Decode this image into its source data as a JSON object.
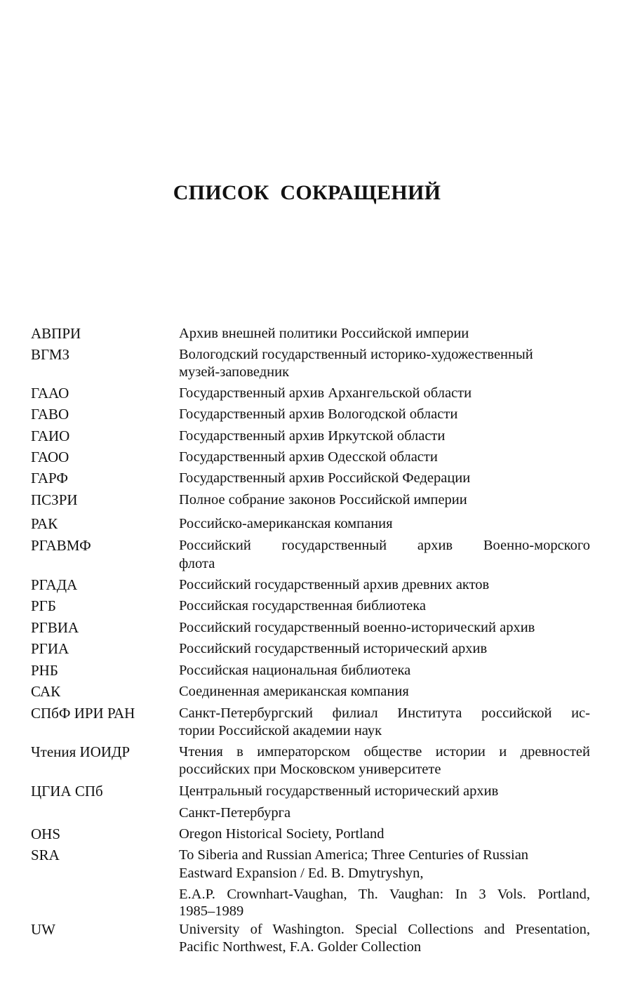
{
  "title": "СПИСОК СОКРАЩЕНИЙ",
  "entries": [
    {
      "abbr": "АВПРИ",
      "lines": [
        "Архив внешней политики Российской империи"
      ]
    },
    {
      "abbr": "ВГМЗ",
      "lines": [
        "Вологодский государственный историко-художественный",
        "музей-заповедник"
      ]
    },
    {
      "abbr": "ГААО",
      "lines": [
        "Государственный архив Архангельской области"
      ]
    },
    {
      "abbr": "ГАВО",
      "lines": [
        "Государственный архив Вологодской области"
      ]
    },
    {
      "abbr": "ГАИО",
      "lines": [
        "Государственный архив Иркутской области"
      ]
    },
    {
      "abbr": "ГАОО",
      "lines": [
        "Государственный архив Одесской области"
      ]
    },
    {
      "abbr": "ГАРФ",
      "lines": [
        "Государственный архив Российской Федерации"
      ]
    },
    {
      "abbr": "ПСЗРИ",
      "lines": [
        "Полное собрание законов Российской империи"
      ]
    },
    {
      "abbr": "РАК",
      "lines": [
        "Российско-американская компания"
      ]
    },
    {
      "abbr": "РГАВМФ",
      "lines": [
        "Российский государственный архив Военно-морского",
        "флота"
      ]
    },
    {
      "abbr": "РГАДА",
      "lines": [
        "Российский государственный архив древних актов"
      ]
    },
    {
      "abbr": "РГБ",
      "lines": [
        "Российская государственная библиотека"
      ]
    },
    {
      "abbr": "РГВИА",
      "lines": [
        "Российский государственный военно-исторический архив"
      ]
    },
    {
      "abbr": "РГИА",
      "lines": [
        "Российский государственный исторический архив"
      ]
    },
    {
      "abbr": "РНБ",
      "lines": [
        "Российская национальная библиотека"
      ]
    },
    {
      "abbr": "САК",
      "lines": [
        "Соединенная американская компания"
      ]
    },
    {
      "abbr": "СПбФ ИРИ РАН",
      "lines": [
        "Санкт-Петербургский филиал Института российской ис-",
        "тории Российской академии наук"
      ]
    },
    {
      "abbr": "Чтения ИОИДР",
      "lines": [
        "Чтения в императорском обществе истории и древностей",
        "российских при Московском университете"
      ]
    },
    {
      "abbr": "ЦГИА  СПб",
      "lines": [
        "Центральный государственный исторический архив",
        "Санкт-Петербурга"
      ]
    },
    {
      "abbr": "OHS",
      "lines": [
        "Oregon Historical Society, Portland"
      ]
    },
    {
      "abbr": "SRA",
      "lines": [
        "To Siberia and Russian America; Three Centuries of Russian",
        "Eastward Expansion / Ed. B. Dmytryshyn,",
        "E.A.P. Crownhart-Vaughan, Th. Vaughan: In 3 Vols. Portland,",
        "1985–1989"
      ]
    },
    {
      "abbr": "UW",
      "lines": [
        "University of Washington. Special Collections and Presentation,",
        "Pacific Northwest, F.A. Golder Collection"
      ]
    }
  ]
}
